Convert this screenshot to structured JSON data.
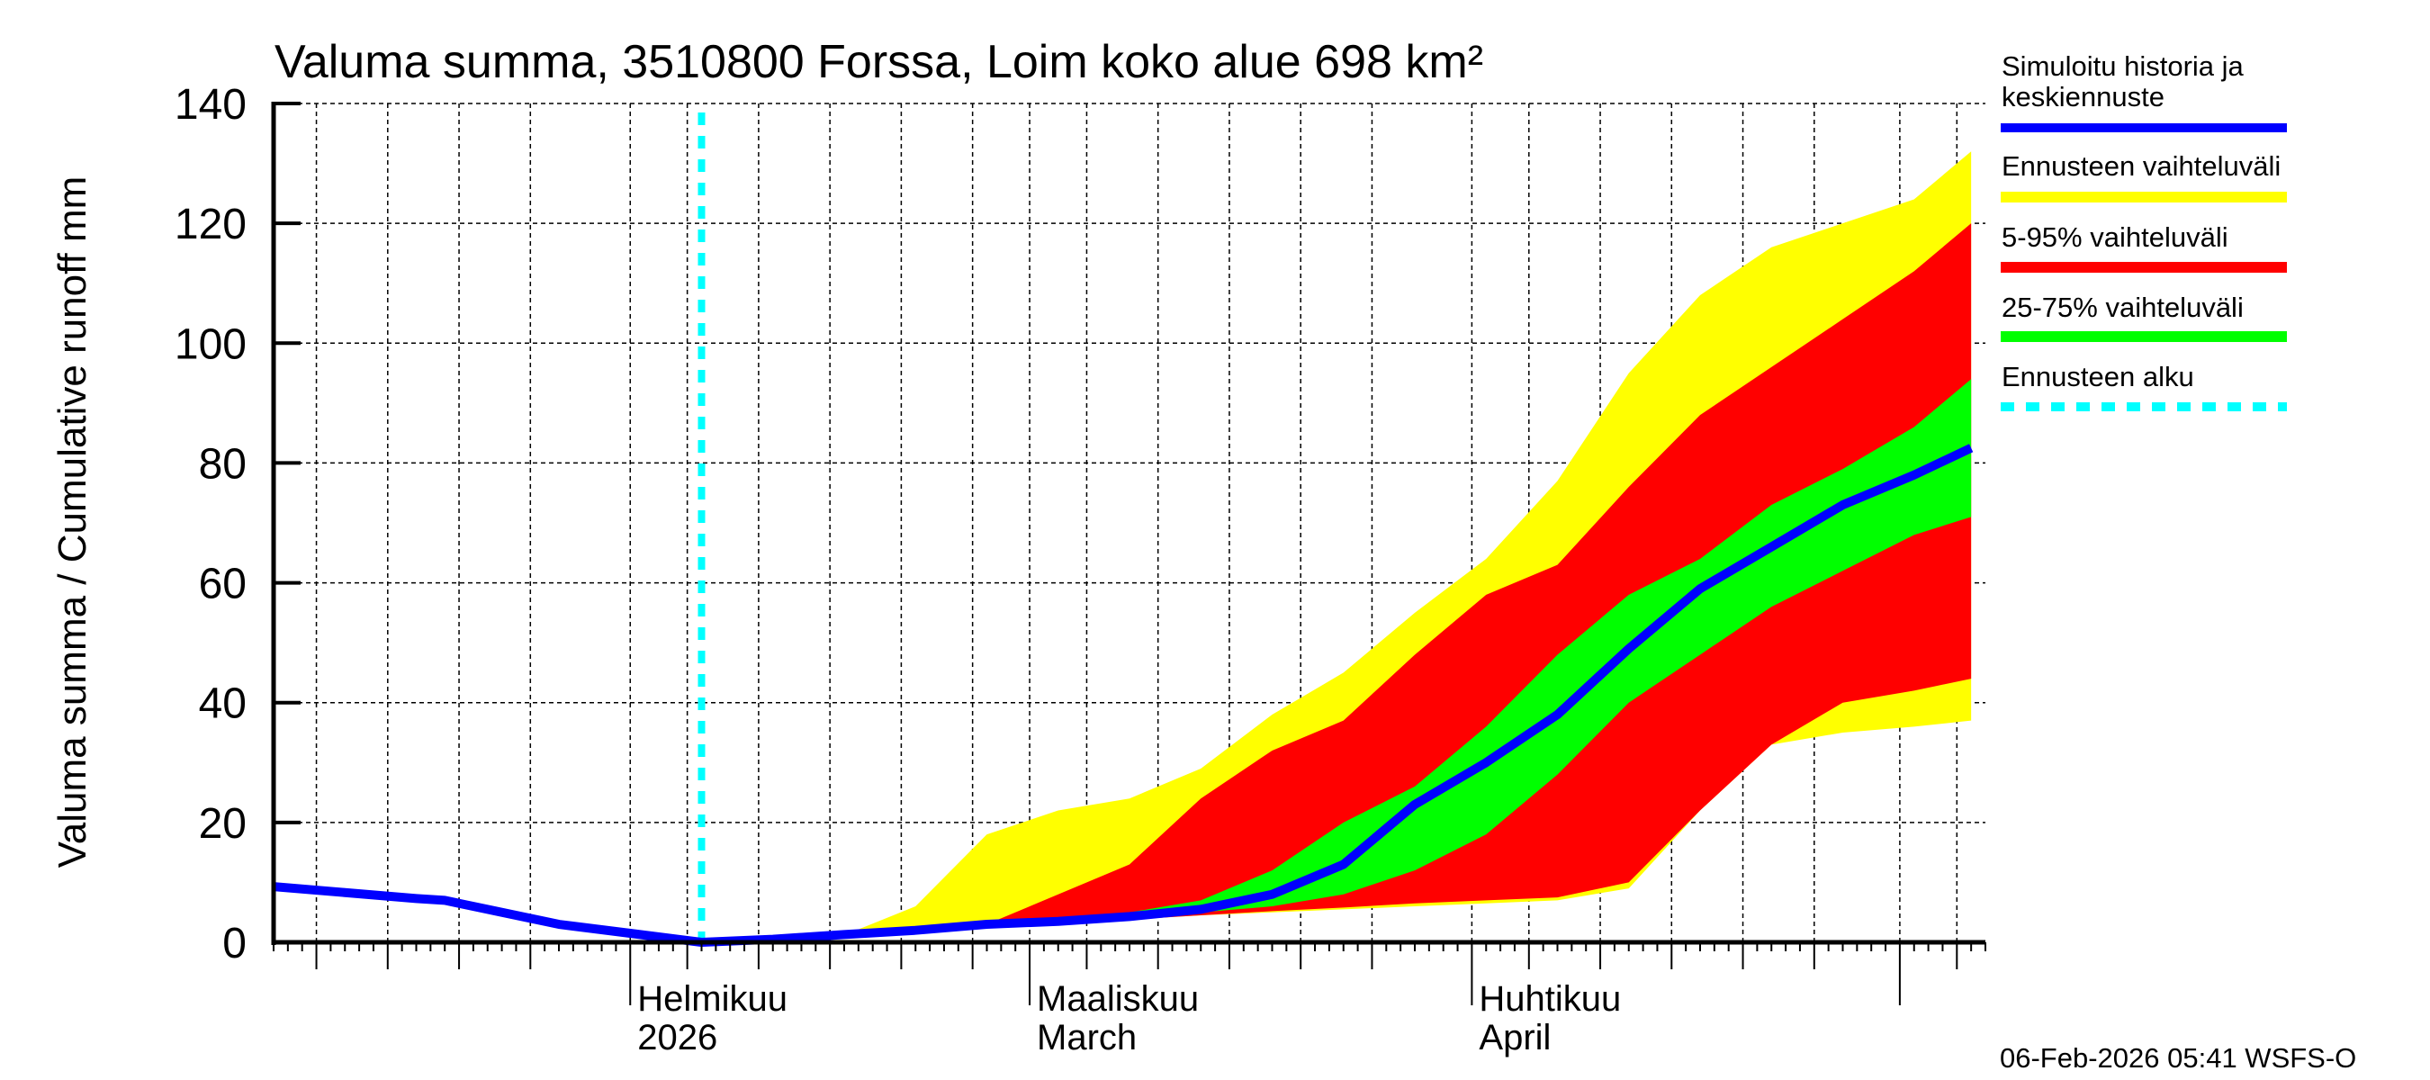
{
  "chart_data": {
    "type": "area",
    "title": "Valuma summa, 3510800 Forssa, Loim koko alue 698 km²",
    "ylabel": "Valuma summa / Cumulative runoff    mm",
    "xlabel": "",
    "ylim": [
      0,
      140
    ],
    "yticks": [
      "0",
      "20",
      "40",
      "60",
      "80",
      "100",
      "120",
      "140"
    ],
    "xlim": [
      "2026-01-07",
      "2026-05-07"
    ],
    "grid": true,
    "legend_placement": "right",
    "month_labels": [
      {
        "date": "2026-02-01",
        "line1": "Helmikuu",
        "line2": "2026"
      },
      {
        "date": "2026-03-01",
        "line1": "Maaliskuu",
        "line2": "March"
      },
      {
        "date": "2026-04-01",
        "line1": "Huhtikuu",
        "line2": "April"
      }
    ],
    "forecast_start": "2026-02-06",
    "history": {
      "dates": [
        "2026-01-07",
        "2026-01-12",
        "2026-01-17",
        "2026-01-19",
        "2026-01-22",
        "2026-01-27",
        "2026-02-01",
        "2026-02-06"
      ],
      "values": [
        9.3,
        8.3,
        7.3,
        7.0,
        5.5,
        3.0,
        1.5,
        0
      ]
    },
    "forecast_dates": [
      "2026-02-06",
      "2026-02-11",
      "2026-02-16",
      "2026-02-21",
      "2026-02-26",
      "2026-03-03",
      "2026-03-08",
      "2026-03-13",
      "2026-03-18",
      "2026-03-23",
      "2026-03-28",
      "2026-04-02",
      "2026-04-07",
      "2026-04-12",
      "2026-04-17",
      "2026-04-22",
      "2026-04-27",
      "2026-05-02",
      "2026-05-06"
    ],
    "series": [
      {
        "name": "Simuloitu historia ja keskiennuste",
        "color": "#0000ff",
        "values": [
          0,
          0.5,
          1.3,
          2,
          3,
          3.5,
          4.3,
          5.5,
          8,
          13,
          23,
          30,
          38,
          49,
          59,
          66,
          73,
          78,
          82.5
        ]
      },
      {
        "name": "Ennusteen vaihteluväli",
        "color": "#ffff00",
        "upper": [
          0,
          0.5,
          1.2,
          6,
          18,
          22,
          24,
          29,
          38,
          45,
          55,
          64,
          77,
          95,
          108,
          116,
          120,
          124,
          132
        ],
        "lower": [
          0,
          0.3,
          1,
          1.7,
          2.4,
          3,
          3.8,
          4.5,
          5,
          5.5,
          6,
          6.5,
          7,
          9,
          22,
          33,
          35,
          36,
          37
        ]
      },
      {
        "name": "5-95% vaihteluväli",
        "color": "#ff0000",
        "upper": [
          0,
          0.3,
          1,
          2,
          3,
          8,
          13,
          24,
          32,
          37,
          48,
          58,
          63,
          76,
          88,
          96,
          104,
          112,
          120
        ],
        "lower": [
          0,
          0.3,
          1,
          1.7,
          2.4,
          3,
          3.8,
          4.5,
          5.2,
          5.8,
          6.5,
          7,
          7.5,
          10,
          22,
          33,
          40,
          42,
          44
        ]
      },
      {
        "name": "25-75% vaihteluväli",
        "color": "#00ff00",
        "upper": [
          0,
          0.3,
          1,
          2,
          3,
          4,
          5,
          7,
          12,
          20,
          26,
          36,
          48,
          58,
          64,
          73,
          79,
          86,
          94
        ],
        "lower": [
          0,
          0.3,
          1,
          1.8,
          2.5,
          3,
          4,
          5,
          6,
          8,
          12,
          18,
          28,
          40,
          48,
          56,
          62,
          68,
          71
        ]
      },
      {
        "name": "Ennusteen alku",
        "color": "#00ffff"
      }
    ]
  },
  "footer": "06-Feb-2026 05:41 WSFS-O"
}
